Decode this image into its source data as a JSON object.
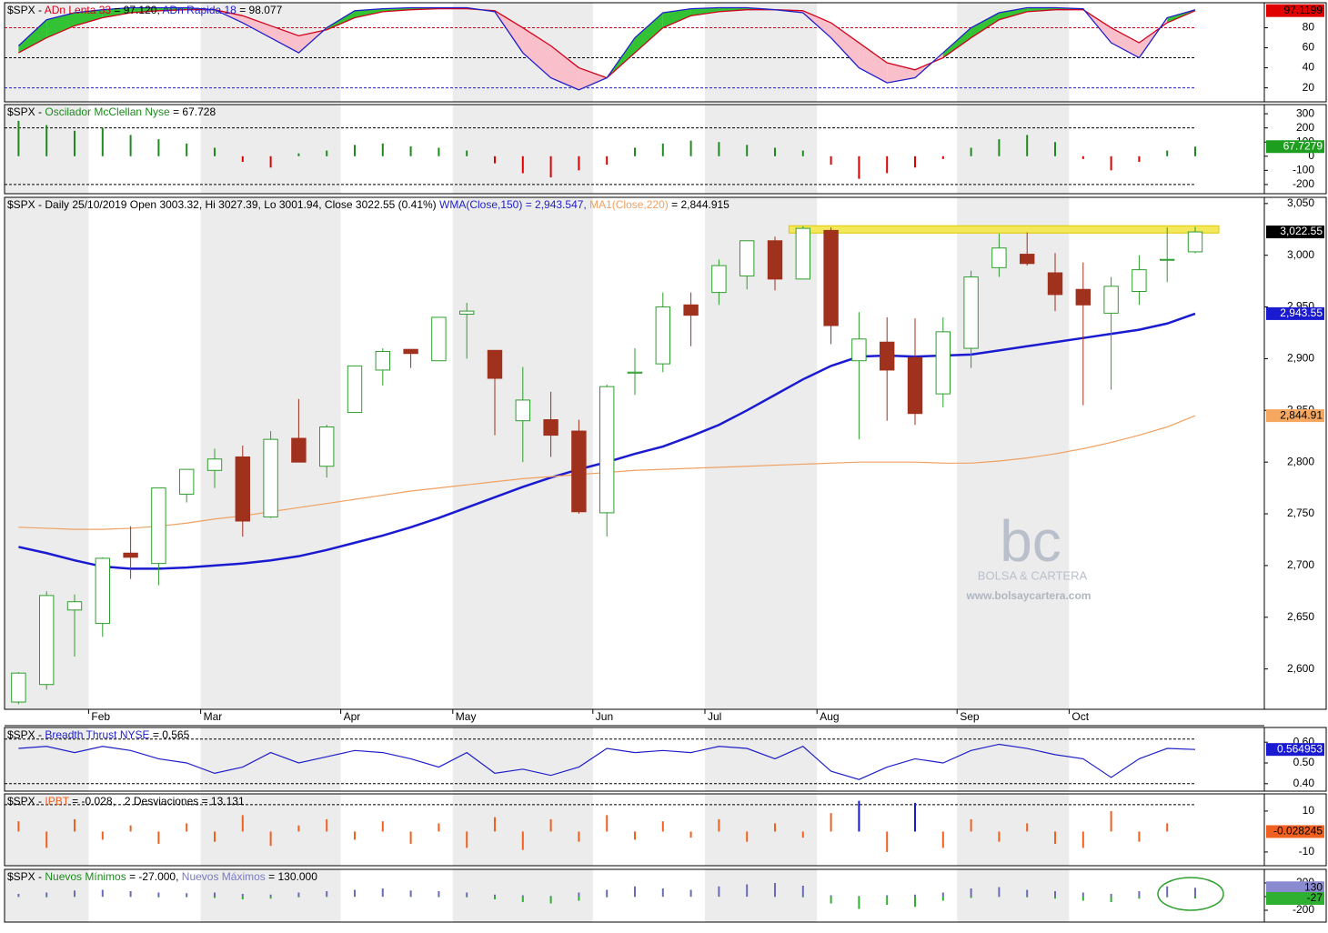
{
  "chart_data": [
    {
      "type": "band",
      "header": [
        {
          "text": "$SPX - ",
          "color": "#000000"
        },
        {
          "text": "ADn Lenta 33",
          "color": "#d0021b"
        },
        {
          "text": " = 97.120, ",
          "color": "#000000"
        },
        {
          "text": "ADn Rapida 18",
          "color": "#1f1fc8"
        },
        {
          "text": " = 98.077",
          "color": "#000000"
        }
      ],
      "ylim": [
        6,
        105
      ],
      "yticks": [
        20,
        40,
        60,
        80
      ],
      "levels": [
        {
          "value": 80,
          "color": "#d0021b"
        },
        {
          "value": 50,
          "color": "#000000"
        },
        {
          "value": 20,
          "color": "#1f1fc8"
        }
      ],
      "fill_up": "#33c233",
      "fill_down": "#f9c0cb",
      "series": [
        {
          "color": "#d0021b",
          "values": [
            55,
            70,
            82,
            90,
            95,
            97,
            98,
            98,
            92,
            82,
            72,
            78,
            90,
            96,
            98,
            99,
            99,
            97,
            80,
            62,
            40,
            30,
            55,
            80,
            92,
            96,
            98,
            98,
            97,
            85,
            65,
            45,
            38,
            50,
            70,
            88,
            96,
            98,
            98,
            80,
            65,
            85,
            97
          ]
        },
        {
          "color": "#1f1fc8",
          "values": [
            62,
            88,
            95,
            98,
            100,
            100,
            100,
            98,
            85,
            70,
            55,
            80,
            97,
            99,
            100,
            100,
            100,
            96,
            55,
            30,
            18,
            30,
            70,
            95,
            99,
            100,
            100,
            98,
            95,
            70,
            40,
            25,
            30,
            55,
            80,
            95,
            100,
            100,
            99,
            65,
            50,
            90,
            98
          ]
        }
      ],
      "markers": [
        {
          "value": 97.1199,
          "label": "97.1199",
          "color": "#e00000",
          "text_color": "#000000"
        }
      ]
    },
    {
      "type": "bar",
      "header": [
        {
          "text": "$SPX - ",
          "color": "#000000"
        },
        {
          "text": "Oscilador McClellan Nyse",
          "color": "#1e8a1e"
        },
        {
          "text": " = 67.728",
          "color": "#000000"
        }
      ],
      "ylim": [
        -265,
        365
      ],
      "yticks": [
        300,
        200,
        100,
        0,
        -100,
        -200
      ],
      "levels": [
        {
          "value": 200,
          "color": "#000000"
        },
        {
          "value": -200,
          "color": "#000000"
        }
      ],
      "series": [
        {
          "color": "#1e8a1e",
          "color_down": "#e00000",
          "values": [
            250,
            220,
            180,
            200,
            150,
            120,
            90,
            60,
            -40,
            -80,
            20,
            40,
            80,
            90,
            70,
            60,
            40,
            -50,
            -120,
            -150,
            -100,
            -60,
            60,
            90,
            110,
            100,
            80,
            60,
            40,
            -60,
            -160,
            -120,
            -80,
            -20,
            60,
            120,
            150,
            100,
            -20,
            -100,
            -40,
            40,
            67.728
          ]
        }
      ],
      "markers": [
        {
          "value": 67.7279,
          "label": "67.7279",
          "color": "#1e9e1e",
          "text_color": "#ffffff"
        }
      ]
    },
    {
      "type": "candlestick",
      "header": [
        {
          "text": "$SPX - Daily 25/10/2019 Open 3003.32, Hi 3027.39, Lo 3001.94, Close 3022.55 (0.41%) ",
          "color": "#000000"
        },
        {
          "text": "WMA(Close,150) = 2,943.547,",
          "color": "#1f1fc8"
        },
        {
          "text": " MA1(Close,220)",
          "color": "#f0a060"
        },
        {
          "text": " = 2,844.915",
          "color": "#000000"
        }
      ],
      "categories": [
        null,
        null,
        null,
        "Feb",
        null,
        null,
        null,
        "Mar",
        null,
        null,
        null,
        null,
        "Apr",
        null,
        null,
        null,
        "May",
        null,
        null,
        null,
        null,
        "Jun",
        null,
        null,
        null,
        "Jul",
        null,
        null,
        null,
        "Aug",
        null,
        null,
        null,
        null,
        "Sep",
        null,
        null,
        null,
        "Oct",
        null,
        null,
        null,
        null
      ],
      "open": [
        2568,
        2585,
        2657,
        2644,
        2712,
        2702,
        2769,
        2792,
        2805,
        2747,
        2823,
        2796,
        2848,
        2889,
        2909,
        2898,
        2943,
        2908,
        2840,
        2841,
        2830,
        2751,
        2886,
        2895,
        2952,
        2964,
        2980,
        3014,
        2977,
        3024,
        2898,
        2916,
        2901,
        2866,
        2910,
        2988,
        3001,
        2983,
        2967,
        2944,
        2965,
        2996,
        3003.32
      ],
      "high": [
        2597,
        2675,
        2672,
        2708,
        2738,
        2775,
        2793,
        2813,
        2816,
        2830,
        2861,
        2836,
        2893,
        2910,
        2909,
        2940,
        2954,
        2908,
        2892,
        2868,
        2841,
        2875,
        2910,
        2964,
        2964,
        2996,
        3013,
        3018,
        3028,
        3027,
        2945,
        2940,
        2939,
        2940,
        2985,
        3021,
        3022,
        3002,
        2993,
        2979,
        3000,
        3027,
        3027.39
      ],
      "low": [
        2566,
        2580,
        2612,
        2631,
        2687,
        2681,
        2761,
        2775,
        2728,
        2746,
        2800,
        2785,
        2848,
        2874,
        2891,
        2900,
        2900,
        2826,
        2800,
        2805,
        2750,
        2728,
        2865,
        2887,
        2912,
        2952,
        2967,
        2966,
        2977,
        2914,
        2822,
        2840,
        2836,
        2853,
        2891,
        2979,
        2990,
        2946,
        2855,
        2870,
        2952,
        2974,
        3001.94
      ],
      "close": [
        2596,
        2671,
        2665,
        2707,
        2708,
        2775,
        2793,
        2803,
        2743,
        2822,
        2800,
        2834,
        2893,
        2907,
        2905,
        2940,
        2946,
        2881,
        2860,
        2826,
        2752,
        2873,
        2887,
        2950,
        2942,
        2990,
        3014,
        2977,
        3026,
        2932,
        2919,
        2889,
        2847,
        2926,
        2979,
        3007,
        2992,
        2962,
        2952,
        2970,
        2986,
        2996,
        3022.55
      ],
      "color_up": "#2e9e2e",
      "color_down": "#a0311c",
      "ylim": [
        2561,
        3056
      ],
      "yticks": [
        {
          "value": 2600,
          "label": "2,600"
        },
        {
          "value": 2650,
          "label": "2,650"
        },
        {
          "value": 2700,
          "label": "2,700"
        },
        {
          "value": 2750,
          "label": "2,750"
        },
        {
          "value": 2800,
          "label": "2,800"
        },
        {
          "value": 2850,
          "label": "2,850"
        },
        {
          "value": 2900,
          "label": "2,900"
        },
        {
          "value": 2950,
          "label": "2,950"
        },
        {
          "value": 3000,
          "label": "3,000"
        },
        {
          "value": 3050,
          "label": "3,050"
        }
      ],
      "hline": {
        "value": 3025,
        "color": "#f3e85a"
      },
      "series": [
        {
          "color": "#1a1ad0",
          "values": [
            2718,
            2712,
            2705,
            2699,
            2697,
            2697,
            2698,
            2700,
            2702,
            2705,
            2709,
            2715,
            2722,
            2729,
            2737,
            2746,
            2756,
            2766,
            2776,
            2785,
            2793,
            2800,
            2808,
            2815,
            2825,
            2836,
            2850,
            2865,
            2880,
            2893,
            2902,
            2903,
            2902,
            2903,
            2904,
            2908,
            2912,
            2916,
            2920,
            2924,
            2928,
            2934,
            2943.547
          ]
        },
        {
          "color": "#f0a060",
          "values": [
            2737,
            2736,
            2735,
            2735,
            2736,
            2738,
            2741,
            2745,
            2748,
            2752,
            2756,
            2760,
            2764,
            2768,
            2772,
            2775,
            2778,
            2781,
            2784,
            2786,
            2788,
            2790,
            2792,
            2793,
            2794,
            2795,
            2796,
            2797,
            2798,
            2799,
            2800,
            2800,
            2800,
            2799,
            2799,
            2801,
            2804,
            2808,
            2813,
            2819,
            2826,
            2834,
            2844.915
          ]
        }
      ],
      "markers": [
        {
          "value": 3022.55,
          "label": "3,022.55",
          "color": "#000000",
          "text_color": "#ffffff"
        },
        {
          "value": 2943.55,
          "label": "2,943.55",
          "color": "#1a1ad0",
          "text_color": "#ffffff"
        },
        {
          "value": 2844.91,
          "label": "2,844.91",
          "color": "#f6a860",
          "text_color": "#000000"
        }
      ]
    },
    {
      "type": "line",
      "header": [
        {
          "text": "$SPX - ",
          "color": "#000000"
        },
        {
          "text": "Breadth Thrust NYSE",
          "color": "#1f1fc8"
        },
        {
          "text": " = 0.565",
          "color": "#000000"
        }
      ],
      "ylim": [
        0.364,
        0.671
      ],
      "yticks": [
        {
          "value": 0.6,
          "label": "0.60"
        },
        {
          "value": 0.5,
          "label": "0.50"
        },
        {
          "value": 0.4,
          "label": "0.40"
        }
      ],
      "levels": [
        {
          "value": 0.615,
          "color": "#000000"
        },
        {
          "value": 0.4,
          "color": "#000000"
        }
      ],
      "series": [
        {
          "color": "#1f1fc8",
          "values": [
            0.57,
            0.58,
            0.55,
            0.58,
            0.56,
            0.52,
            0.5,
            0.45,
            0.48,
            0.55,
            0.5,
            0.53,
            0.56,
            0.55,
            0.52,
            0.48,
            0.55,
            0.45,
            0.47,
            0.44,
            0.48,
            0.57,
            0.55,
            0.56,
            0.55,
            0.58,
            0.57,
            0.52,
            0.58,
            0.46,
            0.42,
            0.48,
            0.52,
            0.5,
            0.56,
            0.59,
            0.57,
            0.54,
            0.52,
            0.43,
            0.52,
            0.57,
            0.565
          ]
        }
      ],
      "markers": [
        {
          "value": 0.564953,
          "label": "0.564953",
          "color": "#1a1ad0",
          "text_color": "#ffffff"
        }
      ]
    },
    {
      "type": "bar",
      "header": [
        {
          "text": "$SPX - ",
          "color": "#000000"
        },
        {
          "text": "IPBT",
          "color": "#f06020"
        },
        {
          "text": " = -0.028,",
          "color": "#000000"
        },
        {
          "text": "   2 Desviaciones = 13.131",
          "color": "#000000"
        }
      ],
      "ylim": [
        -16.7,
        18.4
      ],
      "yticks": [
        10,
        -10
      ],
      "levels": [
        {
          "value": 13.131,
          "color": "#000000"
        }
      ],
      "highlight_color": "#1a1ad0",
      "series": [
        {
          "color": "#f06020",
          "values": [
            5,
            -8,
            6,
            -4,
            3,
            -6,
            4,
            -5,
            8,
            -7,
            3,
            6,
            -4,
            5,
            -6,
            4,
            -8,
            7,
            -9,
            6,
            -5,
            8,
            -4,
            5,
            -3,
            6,
            -5,
            4,
            -3,
            9,
            15,
            -10,
            14,
            -8,
            6,
            -5,
            4,
            -6,
            -8,
            10,
            -5,
            4,
            -0.028
          ]
        }
      ],
      "markers": [
        {
          "value": -0.028245,
          "label": "-0.028245",
          "color": "#f06020",
          "text_color": "#000000"
        }
      ]
    },
    {
      "type": "bar",
      "header": [
        {
          "text": "$SPX - ",
          "color": "#000000"
        },
        {
          "text": "Nuevos Mínimos",
          "color": "#1e8a1e"
        },
        {
          "text": " = -27.000, ",
          "color": "#000000"
        },
        {
          "text": "Nuevos Máximos",
          "color": "#7a7ac0"
        },
        {
          "text": " = 130.000",
          "color": "#000000"
        }
      ],
      "ylim": [
        -373,
        400
      ],
      "yticks": [
        200,
        0,
        -200
      ],
      "series": [
        {
          "color": "#30b030",
          "values": [
            -5,
            -10,
            -5,
            -3,
            -5,
            -10,
            -8,
            -20,
            -40,
            -30,
            -10,
            -5,
            -3,
            -2,
            -5,
            -8,
            -10,
            -40,
            -80,
            -100,
            -60,
            -10,
            -5,
            -3,
            -3,
            -2,
            -2,
            -5,
            -10,
            -100,
            -180,
            -120,
            -150,
            -60,
            -20,
            -5,
            -10,
            -30,
            -60,
            -80,
            -30,
            -10,
            -27
          ]
        },
        {
          "color": "#6a6ab8",
          "values": [
            40,
            60,
            90,
            100,
            80,
            60,
            50,
            60,
            40,
            30,
            60,
            80,
            100,
            120,
            90,
            80,
            60,
            30,
            20,
            10,
            60,
            100,
            150,
            120,
            100,
            150,
            180,
            200,
            160,
            20,
            10,
            20,
            30,
            60,
            120,
            140,
            100,
            80,
            60,
            40,
            80,
            150,
            130
          ]
        }
      ],
      "markers": [
        {
          "value": 130,
          "label": "130",
          "color": "#8a8ad0",
          "text_color": "#000000"
        },
        {
          "value": -27,
          "label": "-27",
          "color": "#30b030",
          "text_color": "#000000"
        }
      ]
    }
  ],
  "watermark": {
    "logo": "bc",
    "name": "BOLSA & CARTERA",
    "url": "www.bolsaycartera.com"
  }
}
